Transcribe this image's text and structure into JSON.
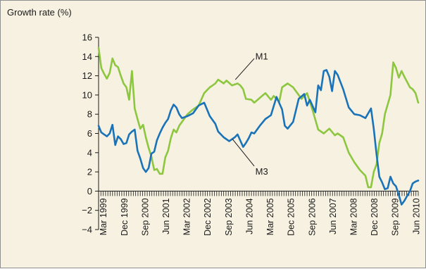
{
  "chart_data": {
    "type": "line",
    "ylabel": "Growth rate (%)",
    "ylim": [
      -4,
      16
    ],
    "yticks": [
      -4,
      -2,
      0,
      2,
      4,
      6,
      8,
      10,
      12,
      14,
      16
    ],
    "xlim": [
      1999.0,
      2010.5
    ],
    "xticks": [
      {
        "label": "Mar 1999",
        "x": 1999.17
      },
      {
        "label": "Dec 1999",
        "x": 1999.92
      },
      {
        "label": "Sep 2000",
        "x": 2000.67
      },
      {
        "label": "Jun 2001",
        "x": 2001.42
      },
      {
        "label": "Mar 2002",
        "x": 2002.17
      },
      {
        "label": "Dec 2002",
        "x": 2002.92
      },
      {
        "label": "Sep 2003",
        "x": 2003.67
      },
      {
        "label": "Jun 2004",
        "x": 2004.42
      },
      {
        "label": "Mar 2005",
        "x": 2005.17
      },
      {
        "label": "Dec 2005",
        "x": 2005.92
      },
      {
        "label": "Sep 2006",
        "x": 2006.67
      },
      {
        "label": "Jun 2007",
        "x": 2007.42
      },
      {
        "label": "Mar 2008",
        "x": 2008.17
      },
      {
        "label": "Dec 2008",
        "x": 2008.92
      },
      {
        "label": "Sep 2009",
        "x": 2009.67
      },
      {
        "label": "Jun 2010",
        "x": 2010.42
      }
    ],
    "series": [
      {
        "name": "M1",
        "color": "#8dc63f",
        "x": [
          1999.0,
          1999.1,
          1999.2,
          1999.3,
          1999.4,
          1999.5,
          1999.6,
          1999.7,
          1999.8,
          1999.9,
          2000.0,
          2000.1,
          2000.2,
          2000.3,
          2000.4,
          2000.5,
          2000.6,
          2000.7,
          2000.8,
          2000.9,
          2001.0,
          2001.1,
          2001.2,
          2001.3,
          2001.4,
          2001.5,
          2001.6,
          2001.7,
          2001.8,
          2001.9,
          2002.0,
          2002.2,
          2002.4,
          2002.6,
          2002.8,
          2003.0,
          2003.1,
          2003.2,
          2003.3,
          2003.5,
          2003.6,
          2003.8,
          2004.0,
          2004.1,
          2004.2,
          2004.3,
          2004.5,
          2004.6,
          2004.8,
          2005.0,
          2005.2,
          2005.3,
          2005.5,
          2005.6,
          2005.8,
          2006.0,
          2006.2,
          2006.3,
          2006.5,
          2006.7,
          2006.9,
          2007.1,
          2007.3,
          2007.5,
          2007.6,
          2007.8,
          2008.0,
          2008.2,
          2008.4,
          2008.6,
          2008.7,
          2008.8,
          2008.9,
          2009.0,
          2009.1,
          2009.2,
          2009.3,
          2009.5,
          2009.6,
          2009.7,
          2009.8,
          2009.9,
          2010.0,
          2010.2,
          2010.3,
          2010.4,
          2010.5
        ],
        "values": [
          14.9,
          12.8,
          12.2,
          11.7,
          12.3,
          13.8,
          13.1,
          12.9,
          12.0,
          11.2,
          10.8,
          9.5,
          12.5,
          8.6,
          7.5,
          6.5,
          6.9,
          5.6,
          4.5,
          3.6,
          2.2,
          2.3,
          1.8,
          1.8,
          3.5,
          4.2,
          5.5,
          6.4,
          6.1,
          6.8,
          7.2,
          8.0,
          8.5,
          8.9,
          10.2,
          10.8,
          11.0,
          11.2,
          11.6,
          11.2,
          11.5,
          11.0,
          11.2,
          11.0,
          10.6,
          9.6,
          9.5,
          9.2,
          9.7,
          10.2,
          9.5,
          9.9,
          9.3,
          10.8,
          11.2,
          10.8,
          10.0,
          9.6,
          10.2,
          8.4,
          6.4,
          6.0,
          6.5,
          5.8,
          6.0,
          5.6,
          4.0,
          3.0,
          2.2,
          1.6,
          0.4,
          0.4,
          2.0,
          2.8,
          5.0,
          6.0,
          8.0,
          10.0,
          13.4,
          12.8,
          11.8,
          12.5,
          11.9,
          10.8,
          10.6,
          10.2,
          9.2
        ]
      },
      {
        "name": "M3",
        "color": "#1a73b8",
        "x": [
          1999.0,
          1999.1,
          1999.2,
          1999.3,
          1999.4,
          1999.5,
          1999.6,
          1999.7,
          1999.8,
          1999.9,
          2000.0,
          2000.1,
          2000.2,
          2000.3,
          2000.4,
          2000.5,
          2000.6,
          2000.7,
          2000.8,
          2000.9,
          2001.0,
          2001.1,
          2001.2,
          2001.3,
          2001.4,
          2001.5,
          2001.6,
          2001.7,
          2001.8,
          2001.9,
          2002.0,
          2002.2,
          2002.4,
          2002.6,
          2002.8,
          2003.0,
          2003.2,
          2003.3,
          2003.5,
          2003.7,
          2003.9,
          2004.0,
          2004.2,
          2004.3,
          2004.4,
          2004.5,
          2004.6,
          2004.8,
          2005.0,
          2005.2,
          2005.4,
          2005.6,
          2005.7,
          2005.8,
          2006.0,
          2006.2,
          2006.4,
          2006.5,
          2006.6,
          2006.8,
          2006.9,
          2007.0,
          2007.1,
          2007.2,
          2007.3,
          2007.4,
          2007.5,
          2007.6,
          2007.8,
          2008.0,
          2008.2,
          2008.4,
          2008.6,
          2008.8,
          2008.9,
          2009.0,
          2009.1,
          2009.2,
          2009.3,
          2009.4,
          2009.5,
          2009.6,
          2009.7,
          2009.8,
          2009.9,
          2010.0,
          2010.1,
          2010.2,
          2010.3,
          2010.4,
          2010.5
        ],
        "values": [
          6.8,
          6.1,
          5.9,
          5.7,
          6.0,
          6.9,
          4.8,
          5.7,
          5.4,
          4.9,
          5.0,
          5.9,
          6.2,
          6.4,
          4.2,
          3.4,
          2.4,
          2.0,
          2.4,
          3.9,
          4.1,
          5.3,
          6.0,
          6.6,
          7.1,
          7.5,
          8.4,
          9.0,
          8.7,
          8.0,
          7.6,
          7.8,
          8.1,
          8.9,
          9.2,
          7.8,
          7.0,
          6.2,
          5.6,
          5.2,
          5.6,
          5.9,
          4.6,
          5.0,
          5.5,
          6.1,
          6.0,
          6.8,
          7.5,
          7.9,
          9.8,
          8.5,
          6.8,
          6.5,
          7.2,
          9.6,
          10.1,
          8.9,
          9.5,
          8.2,
          11.0,
          10.5,
          12.5,
          12.6,
          11.9,
          10.4,
          12.5,
          12.1,
          10.6,
          8.7,
          8.0,
          7.9,
          7.6,
          8.6,
          6.5,
          3.8,
          1.5,
          0.9,
          0.2,
          0.3,
          1.5,
          0.8,
          0.5,
          -0.4,
          -1.4,
          -1.0,
          -0.5,
          0.0,
          0.8,
          1.0,
          1.1
        ]
      }
    ],
    "annotations": [
      {
        "text": "M1",
        "series": "M1"
      },
      {
        "text": "M3",
        "series": "M3"
      }
    ]
  }
}
